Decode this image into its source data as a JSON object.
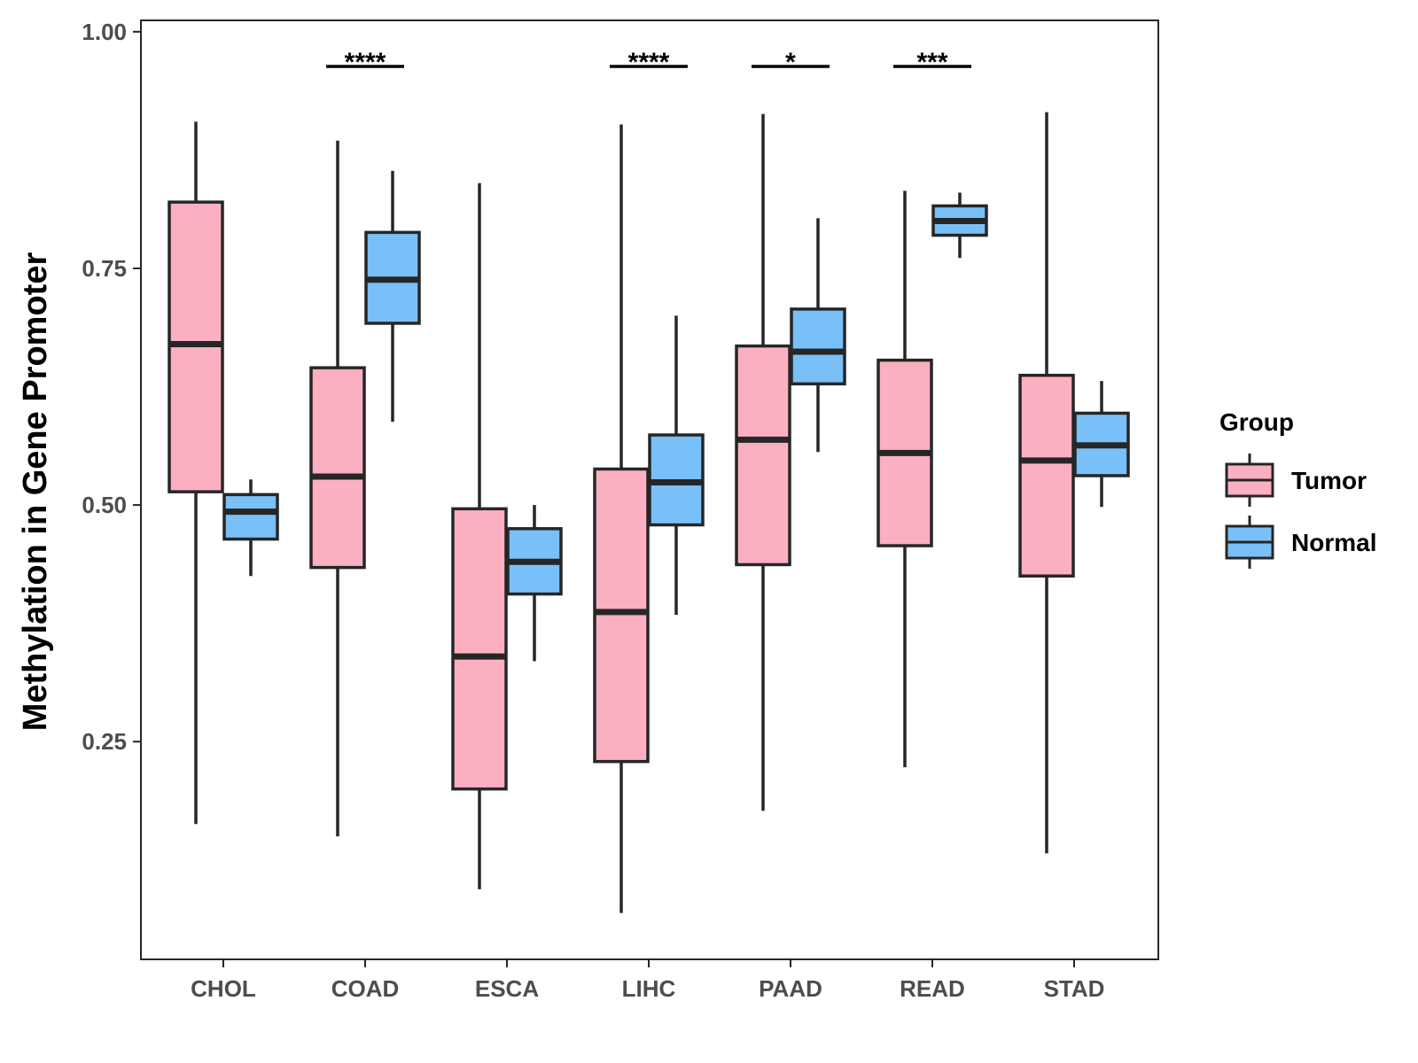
{
  "chart_data": {
    "type": "boxplot",
    "title": "",
    "xlabel": "",
    "ylabel": "Methylation in Gene Promoter",
    "ylim": [
      0.02,
      1.012
    ],
    "yticks": [
      0.25,
      0.5,
      0.75,
      1.0
    ],
    "ytick_labels": [
      "0.25",
      "0.50",
      "0.75",
      "1.00"
    ],
    "categories": [
      "CHOL",
      "COAD",
      "ESCA",
      "LIHC",
      "PAAD",
      "READ",
      "STAD"
    ],
    "legend": {
      "title": "Group",
      "position": "right",
      "entries": [
        "Tumor",
        "Normal"
      ]
    },
    "colors": {
      "Tumor": "#fbb0c2",
      "Normal": "#79c0f8",
      "stroke": "#262626"
    },
    "series": [
      {
        "name": "Tumor",
        "boxes": [
          {
            "whisker_low": 0.163,
            "q1": 0.514,
            "median": 0.67,
            "q3": 0.82,
            "whisker_high": 0.905
          },
          {
            "whisker_low": 0.15,
            "q1": 0.434,
            "median": 0.53,
            "q3": 0.645,
            "whisker_high": 0.885
          },
          {
            "whisker_low": 0.094,
            "q1": 0.2,
            "median": 0.34,
            "q3": 0.496,
            "whisker_high": 0.84
          },
          {
            "whisker_low": 0.069,
            "q1": 0.229,
            "median": 0.387,
            "q3": 0.538,
            "whisker_high": 0.902
          },
          {
            "whisker_low": 0.177,
            "q1": 0.437,
            "median": 0.569,
            "q3": 0.668,
            "whisker_high": 0.913
          },
          {
            "whisker_low": 0.223,
            "q1": 0.457,
            "median": 0.555,
            "q3": 0.653,
            "whisker_high": 0.832
          },
          {
            "whisker_low": 0.132,
            "q1": 0.425,
            "median": 0.547,
            "q3": 0.637,
            "whisker_high": 0.915
          }
        ]
      },
      {
        "name": "Normal",
        "boxes": [
          {
            "whisker_low": 0.425,
            "q1": 0.464,
            "median": 0.493,
            "q3": 0.511,
            "whisker_high": 0.527
          },
          {
            "whisker_low": 0.588,
            "q1": 0.692,
            "median": 0.738,
            "q3": 0.788,
            "whisker_high": 0.853
          },
          {
            "whisker_low": 0.335,
            "q1": 0.406,
            "median": 0.44,
            "q3": 0.475,
            "whisker_high": 0.5
          },
          {
            "whisker_low": 0.384,
            "q1": 0.479,
            "median": 0.524,
            "q3": 0.574,
            "whisker_high": 0.7
          },
          {
            "whisker_low": 0.556,
            "q1": 0.628,
            "median": 0.662,
            "q3": 0.707,
            "whisker_high": 0.803
          },
          {
            "whisker_low": 0.761,
            "q1": 0.785,
            "median": 0.8,
            "q3": 0.816,
            "whisker_high": 0.83
          },
          {
            "whisker_low": 0.498,
            "q1": 0.531,
            "median": 0.563,
            "q3": 0.597,
            "whisker_high": 0.631
          }
        ]
      }
    ],
    "annotations": [
      {
        "category": "COAD",
        "label": "****"
      },
      {
        "category": "LIHC",
        "label": "****"
      },
      {
        "category": "PAAD",
        "label": "*"
      },
      {
        "category": "READ",
        "label": "***"
      }
    ]
  }
}
